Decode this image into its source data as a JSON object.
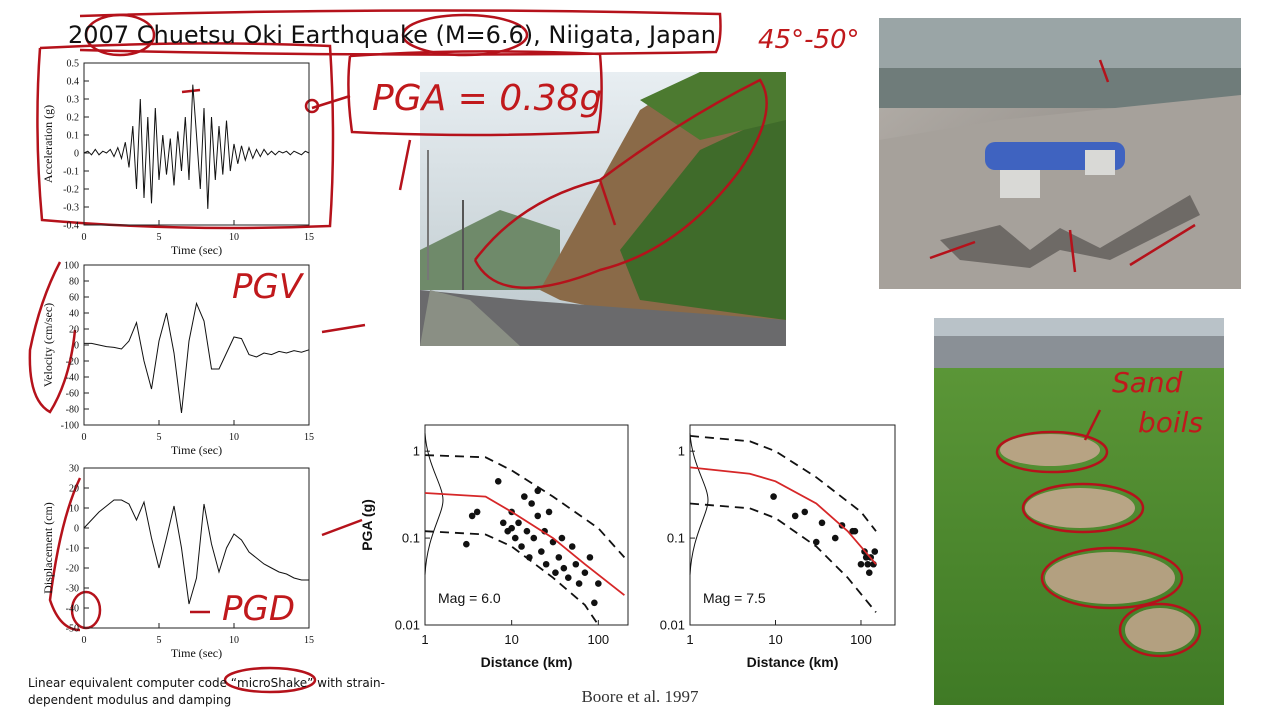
{
  "title": "2007 Chuetsu Oki Earthquake (M=6.6), Niigata, Japan",
  "notes": {
    "pga": "PGA = 0.38g",
    "angle": "45°-50°",
    "pgv": "PGV",
    "pgd": "PGD",
    "sand_boils": [
      "Sand",
      "boils"
    ]
  },
  "footnote": [
    "Linear equivalent computer code “microShake” with strain-",
    "dependent modulus and damping"
  ],
  "citation": "Boore et al. 1997",
  "chart_data": [
    {
      "type": "line",
      "xlabel": "Time (sec)",
      "ylabel": "Acceleration (g)",
      "color": "#111111",
      "xlim": [
        0,
        15
      ],
      "ylim": [
        -0.4,
        0.5
      ],
      "xticks": [
        0,
        5,
        10,
        15
      ],
      "yticks": [
        -0.4,
        -0.3,
        -0.2,
        -0.1,
        0,
        0.1,
        0.2,
        0.3,
        0.4,
        0.5
      ],
      "x": [
        0,
        0.25,
        0.5,
        0.75,
        1,
        1.25,
        1.5,
        1.75,
        2,
        2.25,
        2.5,
        2.75,
        3,
        3.25,
        3.5,
        3.75,
        4,
        4.25,
        4.5,
        4.75,
        5,
        5.25,
        5.5,
        5.75,
        6,
        6.25,
        6.5,
        6.75,
        7,
        7.25,
        7.5,
        7.75,
        8,
        8.25,
        8.5,
        8.75,
        9,
        9.25,
        9.5,
        9.75,
        10,
        10.25,
        10.5,
        10.75,
        11,
        11.25,
        11.5,
        11.75,
        12,
        12.25,
        12.5,
        12.75,
        13,
        13.25,
        13.5,
        13.75,
        14,
        14.25,
        14.5,
        14.75,
        15
      ],
      "values": [
        0,
        0.01,
        -0.01,
        0.02,
        -0.01,
        0.01,
        0,
        0.02,
        -0.02,
        0.03,
        -0.03,
        0.06,
        -0.08,
        0.15,
        -0.2,
        0.3,
        -0.25,
        0.2,
        -0.28,
        0.25,
        -0.15,
        0.1,
        -0.12,
        0.08,
        -0.18,
        0.12,
        -0.1,
        0.2,
        -0.15,
        0.38,
        0.1,
        -0.2,
        0.25,
        -0.31,
        0.2,
        -0.15,
        0.15,
        -0.12,
        0.18,
        -0.1,
        0.05,
        -0.06,
        0.04,
        -0.04,
        0.03,
        -0.03,
        0.02,
        -0.02,
        0.02,
        -0.01,
        0.01,
        -0.01,
        0.01,
        0,
        0.01,
        -0.01,
        0.01,
        0,
        -0.01,
        0.01,
        0
      ]
    },
    {
      "type": "line",
      "xlabel": "Time (sec)",
      "ylabel": "Velocity (cm/sec)",
      "color": "#111111",
      "xlim": [
        0,
        15
      ],
      "ylim": [
        -100,
        100
      ],
      "xticks": [
        0,
        5,
        10,
        15
      ],
      "yticks": [
        -100,
        -80,
        -60,
        -40,
        -20,
        0,
        20,
        40,
        60,
        80,
        100
      ],
      "x": [
        0,
        0.5,
        1,
        1.5,
        2,
        2.5,
        3,
        3.5,
        4,
        4.5,
        5,
        5.5,
        6,
        6.5,
        7,
        7.5,
        8,
        8.5,
        9,
        9.5,
        10,
        10.5,
        11,
        11.5,
        12,
        12.5,
        13,
        13.5,
        14,
        14.5,
        15
      ],
      "values": [
        2,
        2,
        0,
        -2,
        -3,
        -5,
        5,
        28,
        -20,
        -55,
        5,
        40,
        -10,
        -85,
        5,
        52,
        30,
        -30,
        -30,
        -10,
        10,
        8,
        -12,
        -15,
        -10,
        -12,
        -8,
        -10,
        -7,
        -9,
        -6
      ]
    },
    {
      "type": "line",
      "xlabel": "Time (sec)",
      "ylabel": "Displacement (cm)",
      "color": "#111111",
      "xlim": [
        0,
        15
      ],
      "ylim": [
        -50,
        30
      ],
      "xticks": [
        0,
        5,
        10,
        15
      ],
      "yticks": [
        -50,
        -40,
        -30,
        -20,
        -10,
        0,
        10,
        20,
        30
      ],
      "x": [
        0,
        0.5,
        1,
        1.5,
        2,
        2.5,
        3,
        3.5,
        4,
        4.5,
        5,
        5.5,
        6,
        6.5,
        7,
        7.5,
        8,
        8.5,
        9,
        9.5,
        10,
        10.5,
        11,
        11.5,
        12,
        12.5,
        13,
        13.5,
        14,
        14.5,
        15
      ],
      "values": [
        0,
        4,
        8,
        11,
        14,
        14,
        12,
        4,
        13,
        -5,
        -20,
        -5,
        11,
        -10,
        -38,
        -25,
        12,
        -8,
        -22,
        -10,
        -3,
        -6,
        -12,
        -15,
        -18,
        -20,
        -22,
        -23,
        -25,
        -26,
        -26
      ]
    },
    {
      "type": "scatter",
      "xlabel": "Distance (km)",
      "ylabel": "PGA (g)",
      "annotation": "Mag = 6.0",
      "xlog": true,
      "ylog": true,
      "xlim": [
        1,
        220
      ],
      "ylim": [
        0.01,
        2
      ],
      "xticks": [
        1,
        10,
        100
      ],
      "yticks": [
        0.01,
        0.1,
        1
      ],
      "series": [
        {
          "style": "dots",
          "color": "#111111",
          "x": [
            3,
            3.5,
            4,
            7,
            8,
            9,
            10,
            10,
            11,
            12,
            13,
            14,
            15,
            16,
            17,
            18,
            20,
            20,
            22,
            24,
            25,
            27,
            30,
            32,
            35,
            38,
            40,
            45,
            50,
            55,
            60,
            70,
            80,
            90,
            100
          ],
          "values": [
            0.085,
            0.18,
            0.2,
            0.45,
            0.15,
            0.12,
            0.2,
            0.13,
            0.1,
            0.15,
            0.08,
            0.3,
            0.12,
            0.06,
            0.25,
            0.1,
            0.35,
            0.18,
            0.07,
            0.12,
            0.05,
            0.2,
            0.09,
            0.04,
            0.06,
            0.1,
            0.045,
            0.035,
            0.08,
            0.05,
            0.03,
            0.04,
            0.06,
            0.018,
            0.03
          ]
        },
        {
          "style": "solid",
          "color": "#d62728",
          "x": [
            1,
            5,
            10,
            30,
            70,
            200
          ],
          "values": [
            0.33,
            0.3,
            0.2,
            0.1,
            0.05,
            0.022
          ]
        },
        {
          "style": "dashed",
          "color": "#111111",
          "x": [
            1,
            5,
            10,
            30,
            100,
            200
          ],
          "values": [
            0.9,
            0.85,
            0.6,
            0.3,
            0.13,
            0.06
          ]
        },
        {
          "style": "dashed",
          "color": "#111111",
          "x": [
            1,
            5,
            10,
            30,
            70,
            100
          ],
          "values": [
            0.12,
            0.11,
            0.08,
            0.035,
            0.017,
            0.01
          ]
        }
      ]
    },
    {
      "type": "scatter",
      "xlabel": "Distance (km)",
      "annotation": "Mag = 7.5",
      "xlog": true,
      "ylog": true,
      "xlim": [
        1,
        250
      ],
      "ylim": [
        0.01,
        2
      ],
      "xticks": [
        1,
        10,
        100
      ],
      "yticks": [
        0.01,
        0.1,
        1
      ],
      "series": [
        {
          "style": "dots",
          "color": "#111111",
          "x": [
            9.5,
            17,
            22,
            30,
            35,
            50,
            60,
            80,
            85,
            100,
            110,
            115,
            120,
            125,
            130,
            140,
            145
          ],
          "values": [
            0.3,
            0.18,
            0.2,
            0.09,
            0.15,
            0.1,
            0.14,
            0.12,
            0.12,
            0.05,
            0.07,
            0.06,
            0.05,
            0.04,
            0.06,
            0.05,
            0.07
          ]
        },
        {
          "style": "solid",
          "color": "#d62728",
          "x": [
            1,
            5,
            10,
            30,
            70,
            150
          ],
          "values": [
            0.65,
            0.55,
            0.45,
            0.25,
            0.12,
            0.05
          ]
        },
        {
          "style": "dashed",
          "color": "#111111",
          "x": [
            1,
            5,
            10,
            30,
            100,
            150
          ],
          "values": [
            1.5,
            1.3,
            1,
            0.5,
            0.2,
            0.12
          ]
        },
        {
          "style": "dashed",
          "color": "#111111",
          "x": [
            1,
            5,
            10,
            30,
            70,
            150
          ],
          "values": [
            0.25,
            0.22,
            0.17,
            0.08,
            0.035,
            0.014
          ]
        }
      ]
    }
  ]
}
